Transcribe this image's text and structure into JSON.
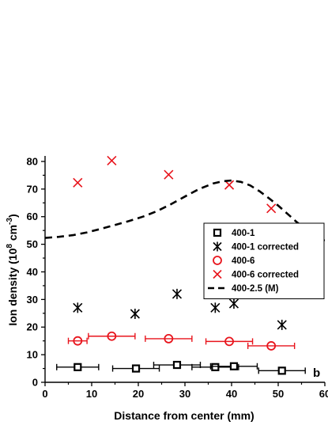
{
  "chart_data": {
    "type": "scatter",
    "xlabel": "Distance from center (mm)",
    "ylabel": {
      "main": "Ion density (10",
      "sup1": "8",
      "mid": " cm",
      "sup2": "-3",
      "end": ")"
    },
    "xlim": [
      0,
      60
    ],
    "ylim": [
      0,
      82
    ],
    "xticks": [
      0,
      10,
      20,
      30,
      40,
      50,
      60
    ],
    "yticks": [
      0,
      10,
      20,
      30,
      40,
      50,
      60,
      70,
      80
    ],
    "grid": false,
    "legend_position": "right",
    "panel_label": "b",
    "series": [
      {
        "name": "400-1",
        "marker": "square",
        "color": "#000000",
        "points": [
          {
            "x": 7.0,
            "y": 5.5,
            "xerr": 4.5
          },
          {
            "x": 19.5,
            "y": 5.0,
            "xerr": 5.0
          },
          {
            "x": 28.3,
            "y": 6.3,
            "xerr": 5.0
          },
          {
            "x": 36.5,
            "y": 5.5,
            "xerr": 5.0
          },
          {
            "x": 40.5,
            "y": 5.8,
            "xerr": 5.0
          },
          {
            "x": 50.8,
            "y": 4.2,
            "xerr": 5.0
          }
        ]
      },
      {
        "name": "400-1 corrected",
        "marker": "asterisk",
        "color": "#000000",
        "points": [
          {
            "x": 7.0,
            "y": 27.0
          },
          {
            "x": 19.3,
            "y": 24.8
          },
          {
            "x": 28.3,
            "y": 32.0
          },
          {
            "x": 36.5,
            "y": 27.0
          },
          {
            "x": 40.5,
            "y": 28.5
          },
          {
            "x": 50.8,
            "y": 20.8
          }
        ]
      },
      {
        "name": "400-6",
        "marker": "circle",
        "color": "#e8141c",
        "points": [
          {
            "x": 7.0,
            "y": 15.0,
            "xerr": 2.0
          },
          {
            "x": 14.3,
            "y": 16.7,
            "xerr": 5.0
          },
          {
            "x": 26.5,
            "y": 15.8,
            "xerr": 5.0
          },
          {
            "x": 39.5,
            "y": 14.8,
            "xerr": 5.0
          },
          {
            "x": 48.5,
            "y": 13.2,
            "xerr": 5.0
          }
        ]
      },
      {
        "name": "400-6 corrected",
        "marker": "x",
        "color": "#e8141c",
        "points": [
          {
            "x": 7.0,
            "y": 72.3
          },
          {
            "x": 14.3,
            "y": 80.3
          },
          {
            "x": 26.5,
            "y": 75.2
          },
          {
            "x": 39.5,
            "y": 71.5
          },
          {
            "x": 48.5,
            "y": 63.0
          }
        ]
      },
      {
        "name": "400-2.5 (M)",
        "marker": "dashed-line",
        "color": "#000000",
        "points": [
          {
            "x": 0,
            "y": 52.3
          },
          {
            "x": 3,
            "y": 52.7
          },
          {
            "x": 6,
            "y": 53.3
          },
          {
            "x": 9,
            "y": 54.3
          },
          {
            "x": 12,
            "y": 55.6
          },
          {
            "x": 15,
            "y": 57.0
          },
          {
            "x": 18,
            "y": 58.4
          },
          {
            "x": 21,
            "y": 60.0
          },
          {
            "x": 24,
            "y": 62.0
          },
          {
            "x": 27,
            "y": 64.5
          },
          {
            "x": 30,
            "y": 67.3
          },
          {
            "x": 33,
            "y": 70.0
          },
          {
            "x": 36,
            "y": 72.0
          },
          {
            "x": 38,
            "y": 72.8
          },
          {
            "x": 40,
            "y": 73.1
          },
          {
            "x": 42,
            "y": 72.6
          },
          {
            "x": 44,
            "y": 71.3
          },
          {
            "x": 46,
            "y": 69.2
          },
          {
            "x": 48,
            "y": 66.7
          },
          {
            "x": 50,
            "y": 64.0
          },
          {
            "x": 52,
            "y": 61.0
          },
          {
            "x": 54,
            "y": 58.0
          },
          {
            "x": 56,
            "y": 55.3
          },
          {
            "x": 58,
            "y": 53.0
          },
          {
            "x": 60,
            "y": 51.3
          }
        ]
      }
    ]
  }
}
